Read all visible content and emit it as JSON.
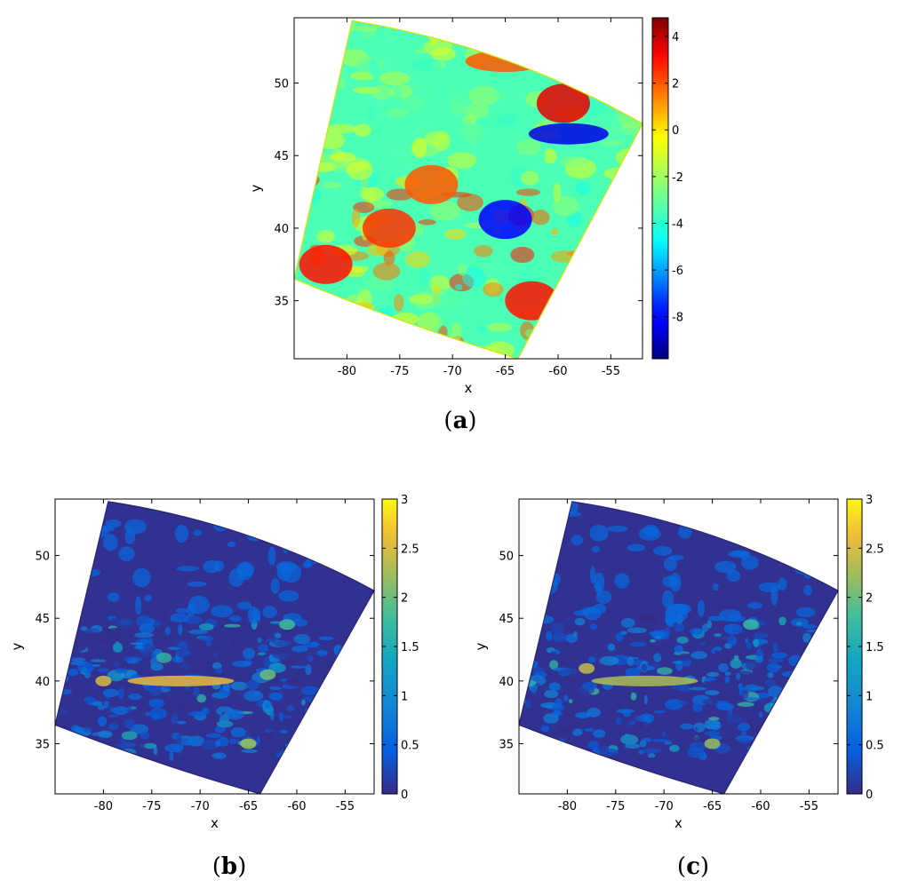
{
  "chart_data": [
    {
      "type": "heatmap",
      "panel_label": "(a)",
      "panel_label_letter": "a",
      "xlabel": "x",
      "ylabel": "y",
      "xlim": [
        -85,
        -52
      ],
      "ylim": [
        31,
        54.5
      ],
      "xticks": [
        -80,
        -75,
        -70,
        -65,
        -60,
        -55
      ],
      "yticks": [
        35,
        40,
        45,
        50
      ],
      "colorbar": {
        "colormap": "jet",
        "range": [
          -9.8,
          4.8
        ],
        "ticks": [
          4,
          2,
          0,
          -2,
          -4,
          -6,
          -8
        ]
      },
      "domain_corners": {
        "top_left": [
          -79.5,
          54.3
        ],
        "top_right": [
          -52,
          47.2
        ],
        "bottom_right": [
          -63.8,
          31
        ],
        "bottom_left": [
          -85,
          36.5
        ]
      },
      "features": [
        {
          "description": "warm maximum",
          "lon": -59.5,
          "lat": 48.6,
          "value": 3.5
        },
        {
          "description": "warm region",
          "lon": -65,
          "lat": 51.5,
          "value": 2.0
        },
        {
          "description": "cold band",
          "lon": -59,
          "lat": 46.5,
          "value": -8.5
        },
        {
          "description": "cold streak",
          "lon": -65,
          "lat": 40.6,
          "value": -8.0
        },
        {
          "description": "warm patches",
          "lon": -82,
          "lat": 37.5,
          "value": 3.0
        },
        {
          "description": "warm patches",
          "lon": -76,
          "lat": 40.0,
          "value": 2.5
        },
        {
          "description": "warm patches",
          "lon": -62.5,
          "lat": 35.0,
          "value": 3.0
        },
        {
          "description": "warm patches",
          "lon": -72,
          "lat": 43.0,
          "value": 2.0
        },
        {
          "description": "background",
          "lon": -72,
          "lat": 48,
          "value": -3.5
        }
      ]
    },
    {
      "type": "heatmap",
      "panel_label": "(b)",
      "panel_label_letter": "b",
      "xlabel": "x",
      "ylabel": "y",
      "xlim": [
        -85,
        -52
      ],
      "ylim": [
        31,
        54.5
      ],
      "xticks": [
        -80,
        -75,
        -70,
        -65,
        -60,
        -55
      ],
      "yticks": [
        35,
        40,
        45,
        50
      ],
      "colorbar": {
        "colormap": "parula",
        "range": [
          0,
          3
        ],
        "ticks": [
          3,
          2.5,
          2,
          1.5,
          1,
          0.5,
          0
        ]
      },
      "features": [
        {
          "description": "high band",
          "lon": -72,
          "lat": 40.0,
          "value": 2.6
        },
        {
          "description": "hotspot",
          "lon": -80,
          "lat": 40.0,
          "value": 2.5
        },
        {
          "description": "hotspot",
          "lon": -65,
          "lat": 35.0,
          "value": 2.2
        },
        {
          "description": "hotspot",
          "lon": -63,
          "lat": 40.5,
          "value": 2.0
        },
        {
          "description": "hotspot",
          "lon": -61,
          "lat": 44.5,
          "value": 1.8
        },
        {
          "description": "background",
          "lon": -72,
          "lat": 49,
          "value": 0.05
        }
      ]
    },
    {
      "type": "heatmap",
      "panel_label": "(c)",
      "panel_label_letter": "c",
      "xlabel": "x",
      "ylabel": "y",
      "xlim": [
        -85,
        -52
      ],
      "ylim": [
        31,
        54.5
      ],
      "xticks": [
        -80,
        -75,
        -70,
        -65,
        -60,
        -55
      ],
      "yticks": [
        35,
        40,
        45,
        50
      ],
      "colorbar": {
        "colormap": "parula",
        "range": [
          0,
          3
        ],
        "ticks": [
          3,
          2.5,
          2,
          1.5,
          1,
          0.5,
          0
        ]
      },
      "features": [
        {
          "description": "high band",
          "lon": -72,
          "lat": 40.0,
          "value": 2.3
        },
        {
          "description": "hotspot",
          "lon": -78,
          "lat": 41.0,
          "value": 2.4
        },
        {
          "description": "hotspot",
          "lon": -65,
          "lat": 35.0,
          "value": 2.2
        },
        {
          "description": "hotspot",
          "lon": -61,
          "lat": 44.5,
          "value": 1.7
        },
        {
          "description": "background",
          "lon": -72,
          "lat": 49,
          "value": 0.05
        }
      ]
    }
  ]
}
